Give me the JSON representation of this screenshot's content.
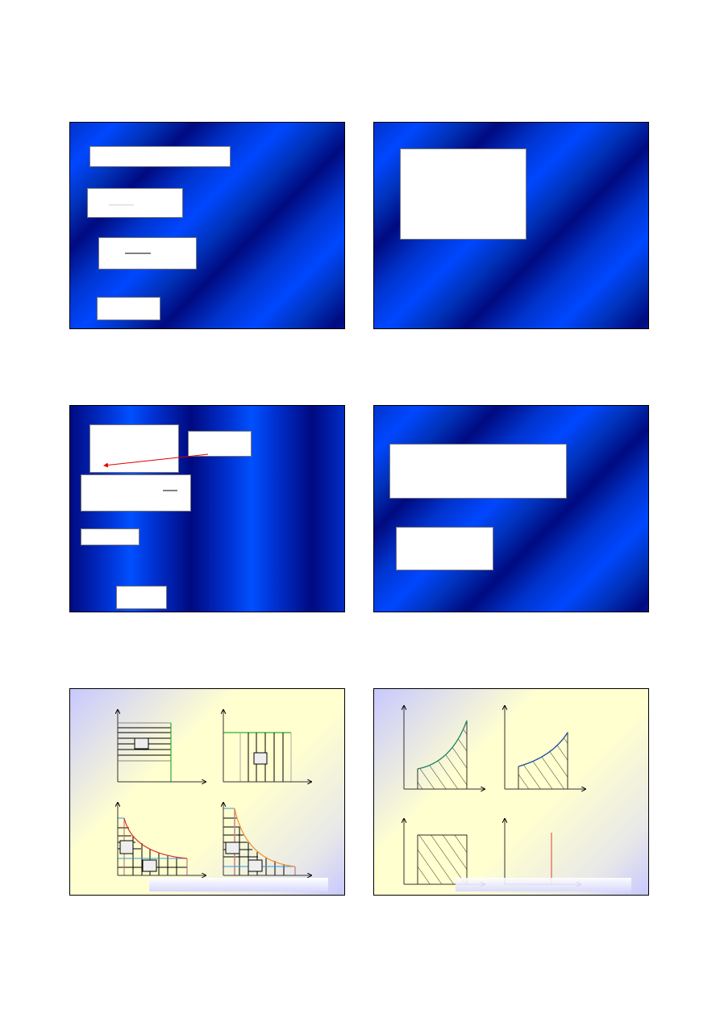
{
  "slides": [
    {
      "id": 1,
      "background": "blue-diagonal"
    },
    {
      "id": 2,
      "background": "blue-diagonal"
    },
    {
      "id": 3,
      "background": "blue-vertical"
    },
    {
      "id": 4,
      "background": "blue-diagonal"
    },
    {
      "id": 5,
      "background": "yellow-gradient"
    },
    {
      "id": 6,
      "background": "yellow-gradient"
    }
  ],
  "colors": {
    "slide_blue": "#0047ff",
    "slide_dark_blue": "#000a80",
    "green_line": "#33aa33",
    "red_curve": "#e03030",
    "orange_curve": "#f09030",
    "blue_line": "#3399dd",
    "arrow": "#e00000"
  }
}
